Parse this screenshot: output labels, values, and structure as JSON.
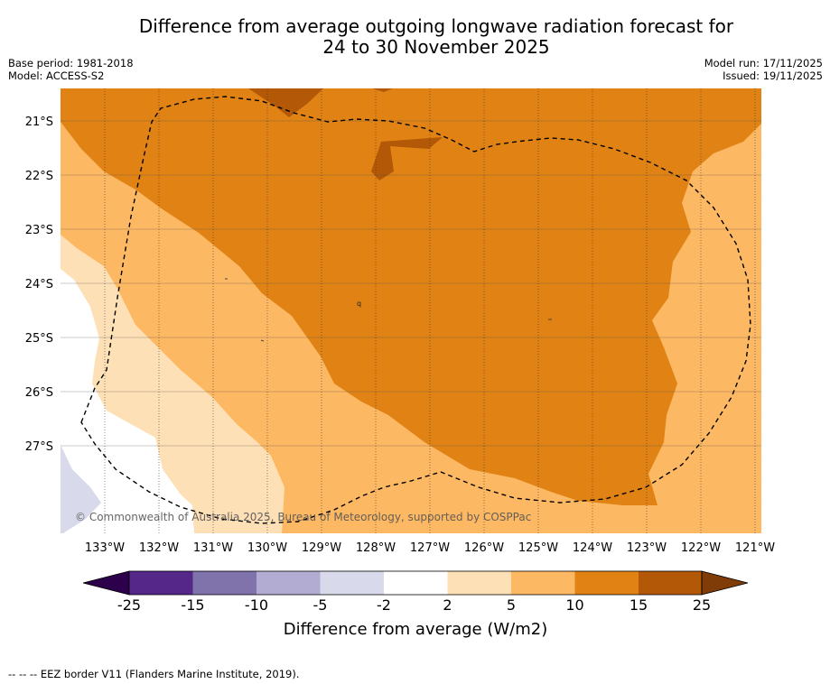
{
  "title": {
    "line1": "Difference from average outgoing longwave radiation forecast for",
    "line2": "24 to 30 November 2025"
  },
  "meta": {
    "base_period": "Base period: 1981-2018",
    "model": "Model: ACCESS-S2",
    "model_run": "Model run: 17/11/2025",
    "issued": "Issued: 19/11/2025"
  },
  "map": {
    "lat_labels": [
      "21°S",
      "22°S",
      "23°S",
      "24°S",
      "25°S",
      "26°S",
      "27°S"
    ],
    "lon_labels": [
      "133°W",
      "132°W",
      "131°W",
      "130°W",
      "129°W",
      "128°W",
      "127°W",
      "126°W",
      "125°W",
      "124°W",
      "123°W",
      "122°W",
      "121°W"
    ],
    "copyright": "© Commonwealth of Australia 2025, Bureau of Meteorology, supported by COSPPac",
    "spot_labels": [
      "q"
    ]
  },
  "colorbar": {
    "title": "Difference from average (W/m2)",
    "boundaries": [
      "-25",
      "-15",
      "-10",
      "-5",
      "-2",
      "2",
      "5",
      "10",
      "15",
      "25"
    ],
    "colors": {
      "under": "#2d004b",
      "bins": [
        "#542788",
        "#8073ac",
        "#b2abd2",
        "#d8daeb",
        "#ffffff",
        "#fee0b6",
        "#fdb863",
        "#e08214",
        "#b35806"
      ],
      "over": "#7f3b08"
    }
  },
  "footnote": "--  --  -- EEZ border V11 (Flanders Marine Institute, 2019)."
}
